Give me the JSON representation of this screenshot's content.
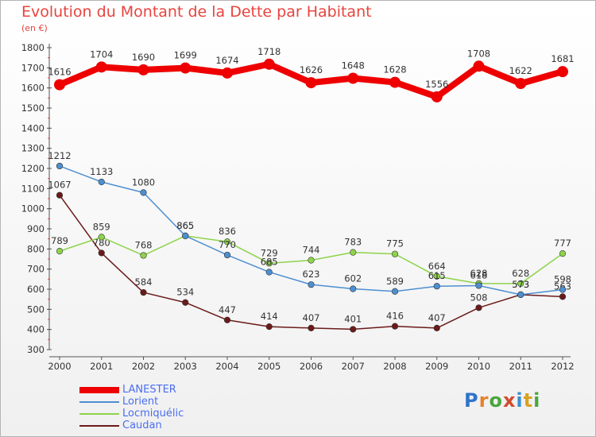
{
  "chart_data": {
    "type": "line",
    "title": "Evolution du Montant de la Dette par Habitant",
    "subtitle": "(en €)",
    "x": [
      "2000",
      "2001",
      "2002",
      "2003",
      "2004",
      "2005",
      "2006",
      "2007",
      "2008",
      "2009",
      "2010",
      "2011",
      "2012"
    ],
    "ylim": [
      300,
      1800
    ],
    "yticks": [
      300,
      400,
      500,
      600,
      700,
      800,
      900,
      1000,
      1100,
      1200,
      1300,
      1400,
      1500,
      1600,
      1700,
      1800
    ],
    "grid": false,
    "legend_position": "bottom-left",
    "series": [
      {
        "name": "LANESTER",
        "color": "#ee0000",
        "values": [
          1616,
          1704,
          1690,
          1699,
          1674,
          1718,
          1626,
          1648,
          1628,
          1556,
          1708,
          1622,
          1681
        ]
      },
      {
        "name": "Lorient",
        "color": "#4d8fd1",
        "values": [
          1212,
          1133,
          1080,
          865,
          770,
          685,
          623,
          602,
          589,
          615,
          618,
          573,
          598
        ]
      },
      {
        "name": "Locmiquélic",
        "color": "#8ed34b",
        "values": [
          789,
          859,
          768,
          865,
          836,
          729,
          744,
          783,
          775,
          664,
          628,
          628,
          777
        ]
      },
      {
        "name": "Caudan",
        "color": "#6b1a1a",
        "values": [
          1067,
          780,
          584,
          534,
          447,
          414,
          407,
          401,
          416,
          407,
          508,
          573,
          563
        ]
      }
    ]
  },
  "logo": {
    "text": "Proxiti",
    "letters": [
      "P",
      "r",
      "o",
      "x",
      "i",
      "t",
      "i"
    ],
    "colors": [
      "#2f74c9",
      "#e5822d",
      "#4aa63d",
      "#d24a2c",
      "#3a8fd4",
      "#d9a224",
      "#4aa63d"
    ]
  }
}
